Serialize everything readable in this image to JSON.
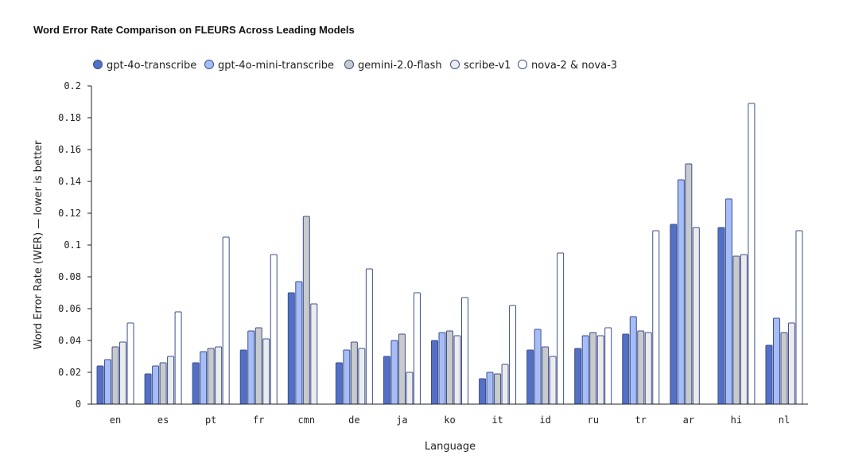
{
  "chart_data": {
    "type": "bar",
    "title": "Word Error Rate Comparison on FLEURS Across Leading Models",
    "xlabel": "Language",
    "ylabel": "Word Error Rate (WER) — lower is better",
    "ylim": [
      0,
      0.2
    ],
    "yticks": [
      0,
      0.02,
      0.04,
      0.06,
      0.08,
      0.1,
      0.12,
      0.14,
      0.16,
      0.18,
      0.2
    ],
    "ytick_labels": [
      "0",
      "0.02",
      "0.04",
      "0.06",
      "0.08",
      "0.1",
      "0.12",
      "0.14",
      "0.16",
      "0.18",
      "0.2"
    ],
    "legend_position": "top-left",
    "grid": false,
    "categories": [
      "en",
      "es",
      "pt",
      "fr",
      "cmn",
      "de",
      "ja",
      "ko",
      "it",
      "id",
      "ru",
      "tr",
      "ar",
      "hi",
      "nl"
    ],
    "series": [
      {
        "name": "gpt-4o-transcribe",
        "color": "#5470c6",
        "values": [
          0.024,
          0.019,
          0.026,
          0.034,
          0.07,
          0.026,
          0.03,
          0.04,
          0.016,
          0.034,
          0.035,
          0.044,
          0.113,
          0.111,
          0.037
        ]
      },
      {
        "name": "gpt-4o-mini-transcribe",
        "color": "#a6bdf7",
        "values": [
          0.028,
          0.024,
          0.033,
          0.046,
          0.077,
          0.034,
          0.04,
          0.045,
          0.02,
          0.047,
          0.043,
          0.055,
          0.141,
          0.129,
          0.054
        ]
      },
      {
        "name": "gemini-2.0-flash",
        "color": "#c9cacc",
        "values": [
          0.036,
          0.026,
          0.035,
          0.048,
          0.118,
          0.039,
          0.044,
          0.046,
          0.019,
          0.036,
          0.045,
          0.046,
          0.151,
          0.093,
          0.045
        ]
      },
      {
        "name": "scribe-v1",
        "color": "#ececee",
        "values": [
          0.039,
          0.03,
          0.036,
          0.041,
          0.063,
          0.035,
          0.02,
          0.043,
          0.025,
          0.03,
          0.043,
          0.045,
          0.111,
          0.094,
          0.051
        ]
      },
      {
        "name": "nova-2 & nova-3",
        "color": "#ffffff",
        "values": [
          0.051,
          0.058,
          0.105,
          0.094,
          0.0,
          0.085,
          0.07,
          0.067,
          0.062,
          0.095,
          0.048,
          0.109,
          0.0,
          0.189,
          0.109
        ]
      }
    ]
  }
}
